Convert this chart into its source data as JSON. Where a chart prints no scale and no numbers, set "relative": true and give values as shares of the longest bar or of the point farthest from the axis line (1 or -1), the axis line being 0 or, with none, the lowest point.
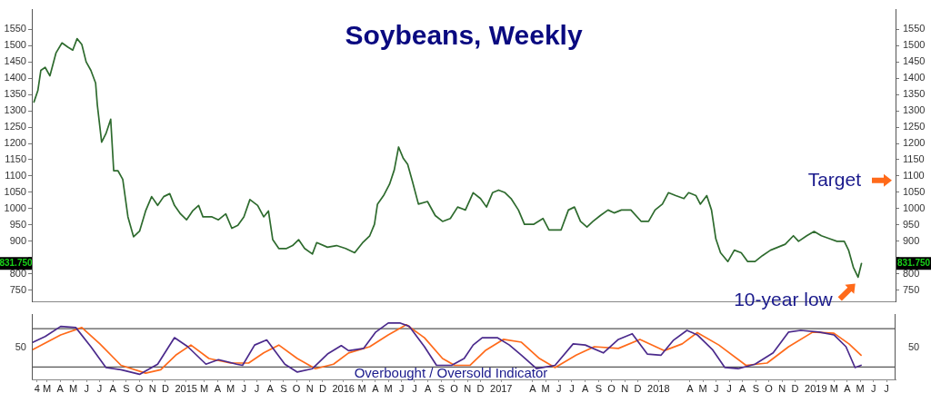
{
  "chart_data": [
    {
      "type": "line",
      "title": "Soybeans, Weekly",
      "color": "#2e6b2e",
      "x": [
        "2014-02-13",
        "2014-02-22",
        "2014-03-01",
        "2014-03-11",
        "2014-03-22",
        "2014-04-05",
        "2014-04-19",
        "2014-05-03",
        "2014-05-14",
        "2014-05-24",
        "2014-06-04",
        "2014-06-14",
        "2014-06-25",
        "2014-07-06",
        "2014-07-10",
        "2014-07-20",
        "2014-07-30",
        "2014-08-10",
        "2014-08-17",
        "2014-08-27",
        "2014-09-07",
        "2014-09-19",
        "2014-10-02",
        "2014-10-16",
        "2014-10-30",
        "2014-11-13",
        "2014-11-27",
        "2014-12-11",
        "2014-12-25",
        "2015-01-05",
        "2015-01-19",
        "2015-02-02",
        "2015-02-16",
        "2015-03-02",
        "2015-03-12",
        "2015-04-02",
        "2015-04-17",
        "2015-05-04",
        "2015-05-18",
        "2015-06-01",
        "2015-06-15",
        "2015-06-29",
        "2015-07-17",
        "2015-07-31",
        "2015-08-11",
        "2015-08-21",
        "2015-09-04",
        "2015-09-22",
        "2015-10-06",
        "2015-10-20",
        "2015-11-03",
        "2015-11-21",
        "2015-12-01",
        "2015-12-26",
        "2016-01-16",
        "2016-02-06",
        "2016-02-27",
        "2016-03-16",
        "2016-04-02",
        "2016-04-13",
        "2016-04-20",
        "2016-05-04",
        "2016-05-18",
        "2016-05-29",
        "2016-06-08",
        "2016-06-19",
        "2016-06-29",
        "2016-07-10",
        "2016-07-24",
        "2016-08-14",
        "2016-09-01",
        "2016-09-18",
        "2016-10-06",
        "2016-10-23",
        "2016-11-10",
        "2016-11-28",
        "2016-12-15",
        "2016-12-29",
        "2017-01-12",
        "2017-01-26",
        "2017-02-10",
        "2017-02-24",
        "2017-03-13",
        "2017-03-27",
        "2017-04-17",
        "2017-05-09",
        "2017-05-23",
        "2017-06-06",
        "2017-06-20",
        "2017-07-07",
        "2017-07-21",
        "2017-08-04",
        "2017-08-19",
        "2017-09-02",
        "2017-09-19",
        "2017-10-07",
        "2017-10-21",
        "2017-11-07",
        "2017-11-29",
        "2017-12-23",
        "2018-01-09",
        "2018-01-24",
        "2018-02-10",
        "2018-02-24",
        "2018-03-13",
        "2018-04-01",
        "2018-04-12",
        "2018-04-29",
        "2018-05-09",
        "2018-05-24",
        "2018-06-04",
        "2018-06-14",
        "2018-06-25",
        "2018-07-12",
        "2018-07-27",
        "2018-08-12",
        "2018-08-27",
        "2018-09-13",
        "2018-09-30",
        "2018-10-19",
        "2018-11-05",
        "2018-11-22",
        "2018-12-11",
        "2018-12-23",
        "2019-01-11",
        "2019-01-28",
        "2019-02-14",
        "2019-03-05",
        "2019-03-22",
        "2019-04-08",
        "2019-04-18",
        "2019-04-29",
        "2019-05-10",
        "2019-05-18"
      ],
      "values": [
        1327,
        1362,
        1424,
        1433,
        1407,
        1477,
        1508,
        1495,
        1486,
        1521,
        1503,
        1450,
        1424,
        1385,
        1318,
        1204,
        1230,
        1274,
        1116,
        1116,
        1090,
        975,
        914,
        931,
        993,
        1037,
        1010,
        1037,
        1046,
        1010,
        984,
        966,
        993,
        1010,
        975,
        975,
        966,
        984,
        940,
        949,
        975,
        1028,
        1010,
        975,
        993,
        905,
        878,
        878,
        887,
        905,
        878,
        861,
        896,
        882,
        887,
        878,
        865,
        895,
        917,
        952,
        1014,
        1040,
        1075,
        1119,
        1189,
        1154,
        1136,
        1084,
        1014,
        1022,
        979,
        961,
        970,
        1005,
        996,
        1049,
        1031,
        1005,
        1049,
        1057,
        1049,
        1031,
        996,
        952,
        952,
        970,
        935,
        935,
        935,
        996,
        1005,
        961,
        944,
        961,
        979,
        996,
        987,
        996,
        996,
        961,
        961,
        996,
        1014,
        1049,
        1040,
        1031,
        1049,
        1040,
        1014,
        1040,
        996,
        908,
        865,
        838,
        873,
        865,
        838,
        838,
        856,
        873,
        882,
        891,
        917,
        900,
        917,
        930,
        917,
        908,
        900,
        900,
        873,
        821,
        790,
        832
      ],
      "xlim": [
        "2014-02-08",
        "2019-08-05"
      ],
      "ylim": [
        715,
        1610
      ],
      "yticks": [
        750,
        800,
        {
          "value": 850,
          "label": null
        },
        900,
        950,
        1000,
        1050,
        1100,
        1150,
        1200,
        1250,
        1300,
        1350,
        1400,
        1450,
        1500,
        1550
      ],
      "y2lim": [
        715,
        1610
      ],
      "y2ticks": [
        750,
        800,
        {
          "value": 850,
          "label": null
        },
        900,
        950,
        1000,
        1050,
        1100,
        1150,
        1200,
        1250,
        1300,
        1350,
        1400,
        1450,
        1500,
        1550
      ],
      "tick_labels": "y",
      "annotations": [
        "Target",
        {
          "text": "10-year low",
          "x": "2019-05-10",
          "y": 790
        },
        "831.750"
      ]
    },
    {
      "type": "line",
      "series": [
        {
          "color": "#4b2a8c",
          "x": [
            "2014-02-11",
            "2014-03-11",
            "2014-04-16",
            "2014-05-21",
            "2014-06-25",
            "2014-07-30",
            "2014-09-03",
            "2014-10-16",
            "2014-11-27",
            "2015-01-05",
            "2015-02-05",
            "2015-03-19",
            "2015-04-17",
            "2015-05-29",
            "2015-06-12",
            "2015-07-10",
            "2015-08-07",
            "2015-09-18",
            "2015-10-17",
            "2015-11-21",
            "2015-12-26",
            "2016-01-27",
            "2016-02-13",
            "2016-03-19",
            "2016-04-16",
            "2016-05-15",
            "2016-06-12",
            "2016-07-03",
            "2016-08-07",
            "2016-09-04",
            "2016-10-09",
            "2016-11-07",
            "2016-11-28",
            "2016-12-19",
            "2017-01-23",
            "2017-02-20",
            "2017-03-20",
            "2017-04-24",
            "2017-06-06",
            "2017-07-18",
            "2017-08-15",
            "2017-09-26",
            "2017-10-31",
            "2017-12-02",
            "2018-01-06",
            "2018-02-07",
            "2018-03-07",
            "2018-04-08",
            "2018-05-02",
            "2018-06-06",
            "2018-07-05",
            "2018-08-05",
            "2018-09-13",
            "2018-10-25",
            "2018-11-30",
            "2018-12-28",
            "2019-02-09",
            "2019-03-15",
            "2019-04-12",
            "2019-05-03",
            "2019-05-17"
          ],
          "values": [
            0.66,
            0.76,
            0.94,
            0.92,
            0.58,
            0.21,
            0.17,
            0.09,
            0.27,
            0.74,
            0.58,
            0.27,
            0.35,
            0.27,
            0.25,
            0.61,
            0.7,
            0.27,
            0.13,
            0.19,
            0.45,
            0.6,
            0.51,
            0.55,
            0.84,
            1,
            1,
            0.94,
            0.58,
            0.25,
            0.25,
            0.37,
            0.61,
            0.74,
            0.74,
            0.61,
            0.43,
            0.19,
            0.25,
            0.63,
            0.61,
            0.47,
            0.71,
            0.81,
            0.45,
            0.43,
            0.69,
            0.87,
            0.79,
            0.53,
            0.21,
            0.19,
            0.27,
            0.47,
            0.84,
            0.87,
            0.84,
            0.79,
            0.58,
            0.21,
            0.25
          ]
        },
        {
          "color": "#ff6a1a",
          "x": [
            "2014-02-11",
            "2014-04-16",
            "2014-06-04",
            "2014-07-16",
            "2014-09-03",
            "2014-10-30",
            "2014-12-04",
            "2015-01-08",
            "2015-02-12",
            "2015-03-26",
            "2015-05-15",
            "2015-06-26",
            "2015-07-31",
            "2015-09-04",
            "2015-10-17",
            "2015-11-28",
            "2016-01-09",
            "2016-02-13",
            "2016-04-02",
            "2016-05-15",
            "2016-06-26",
            "2016-08-07",
            "2016-09-18",
            "2016-10-16",
            "2016-11-21",
            "2016-12-26",
            "2017-02-06",
            "2017-03-20",
            "2017-05-01",
            "2017-06-06",
            "2017-07-25",
            "2017-09-05",
            "2017-10-31",
            "2017-12-20",
            "2018-02-14",
            "2018-03-28",
            "2018-05-02",
            "2018-06-21",
            "2018-08-23",
            "2018-10-11",
            "2018-11-30",
            "2019-01-25",
            "2019-03-15",
            "2019-04-19",
            "2019-05-17"
          ],
          "values": [
            0.53,
            0.79,
            0.92,
            0.63,
            0.25,
            0.11,
            0.17,
            0.43,
            0.61,
            0.37,
            0.29,
            0.29,
            0.47,
            0.61,
            0.37,
            0.19,
            0.27,
            0.47,
            0.58,
            0.79,
            0.97,
            0.74,
            0.37,
            0.25,
            0.25,
            0.51,
            0.71,
            0.66,
            0.37,
            0.21,
            0.43,
            0.58,
            0.55,
            0.71,
            0.51,
            0.63,
            0.83,
            0.61,
            0.25,
            0.29,
            0.58,
            0.84,
            0.82,
            0.63,
            0.43
          ]
        }
      ],
      "xlim": [
        "2014-02-08",
        "2019-08-05"
      ],
      "xticks": [
        {
          "value": "2014-02-20",
          "label": "4"
        },
        {
          "value": "2014-03-15",
          "label": "M"
        },
        {
          "value": "2014-04-15",
          "label": "A"
        },
        {
          "value": "2014-05-15",
          "label": "M"
        },
        {
          "value": "2014-06-15",
          "label": "J"
        },
        {
          "value": "2014-07-15",
          "label": "J"
        },
        {
          "value": "2014-08-15",
          "label": "A"
        },
        {
          "value": "2014-09-15",
          "label": "S"
        },
        {
          "value": "2014-10-15",
          "label": "O"
        },
        {
          "value": "2014-11-15",
          "label": "N"
        },
        {
          "value": "2014-12-15",
          "label": "D"
        },
        {
          "value": "2015-02-01",
          "label": "2015"
        },
        {
          "value": "2015-03-15",
          "label": "M"
        },
        {
          "value": "2015-04-15",
          "label": "A"
        },
        {
          "value": "2015-05-15",
          "label": "M"
        },
        {
          "value": "2015-06-15",
          "label": "J"
        },
        {
          "value": "2015-07-15",
          "label": "J"
        },
        {
          "value": "2015-08-15",
          "label": "A"
        },
        {
          "value": "2015-09-15",
          "label": "S"
        },
        {
          "value": "2015-10-15",
          "label": "O"
        },
        {
          "value": "2015-11-15",
          "label": "N"
        },
        {
          "value": "2015-12-15",
          "label": "D"
        },
        {
          "value": "2016-02-01",
          "label": "2016"
        },
        {
          "value": "2016-03-15",
          "label": "M"
        },
        {
          "value": "2016-04-15",
          "label": "A"
        },
        {
          "value": "2016-05-15",
          "label": "M"
        },
        {
          "value": "2016-06-15",
          "label": "J"
        },
        {
          "value": "2016-07-15",
          "label": "J"
        },
        {
          "value": "2016-08-15",
          "label": "A"
        },
        {
          "value": "2016-09-15",
          "label": "S"
        },
        {
          "value": "2016-10-15",
          "label": "O"
        },
        {
          "value": "2016-11-15",
          "label": "N"
        },
        {
          "value": "2016-12-15",
          "label": "D"
        },
        {
          "value": "2017-02-01",
          "label": "2017"
        },
        {
          "value": "2017-04-15",
          "label": "A"
        },
        {
          "value": "2017-05-15",
          "label": "M"
        },
        {
          "value": "2017-06-15",
          "label": "J"
        },
        {
          "value": "2017-07-15",
          "label": "J"
        },
        {
          "value": "2017-08-15",
          "label": "A"
        },
        {
          "value": "2017-09-15",
          "label": "S"
        },
        {
          "value": "2017-10-15",
          "label": "O"
        },
        {
          "value": "2017-11-15",
          "label": "N"
        },
        {
          "value": "2017-12-15",
          "label": "D"
        },
        {
          "value": "2018-02-01",
          "label": "2018"
        },
        {
          "value": "2018-04-15",
          "label": "A"
        },
        {
          "value": "2018-05-15",
          "label": "M"
        },
        {
          "value": "2018-06-15",
          "label": "J"
        },
        {
          "value": "2018-07-15",
          "label": "J"
        },
        {
          "value": "2018-08-15",
          "label": "A"
        },
        {
          "value": "2018-09-15",
          "label": "S"
        },
        {
          "value": "2018-10-15",
          "label": "O"
        },
        {
          "value": "2018-11-15",
          "label": "N"
        },
        {
          "value": "2018-12-15",
          "label": "D"
        },
        {
          "value": "2019-02-01",
          "label": "2019"
        },
        {
          "value": "2019-03-15",
          "label": "M"
        },
        {
          "value": "2019-04-15",
          "label": "A"
        },
        {
          "value": "2019-05-15",
          "label": "M"
        },
        {
          "value": "2019-06-15",
          "label": "J"
        },
        {
          "value": "2019-07-15",
          "label": "J"
        }
      ],
      "relative": true,
      "ref_lines": [
        {
          "axis": "y",
          "value": 0.9,
          "color": "#555555"
        },
        {
          "axis": "y",
          "value": 0.22,
          "color": "#555555"
        }
      ],
      "annotations": [
        "Overbought / Oversold Indicator",
        "50",
        "50"
      ]
    }
  ]
}
